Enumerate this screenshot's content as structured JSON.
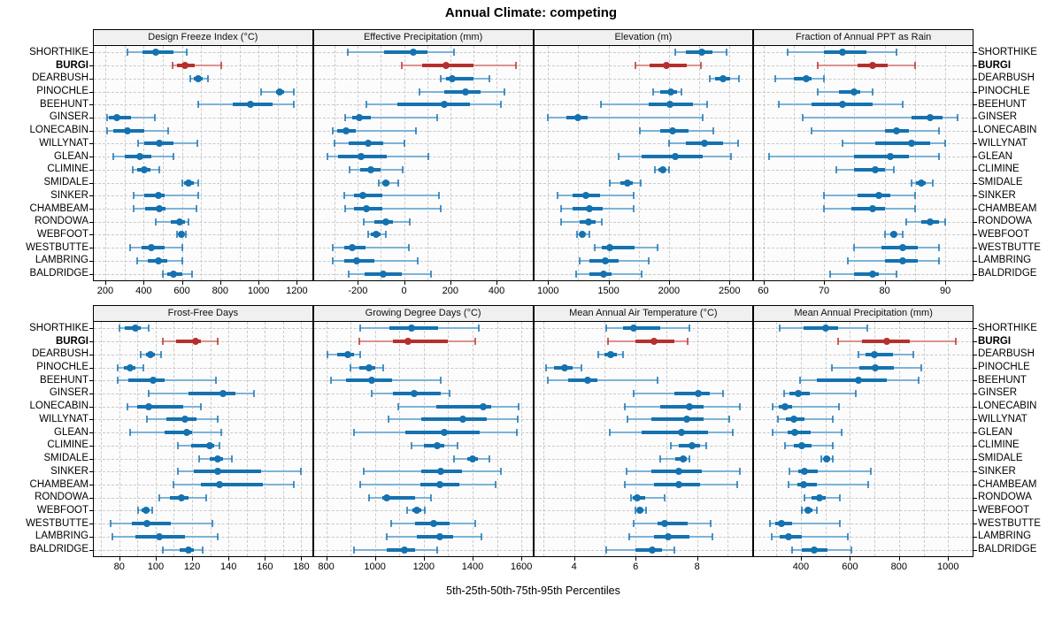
{
  "title": "Annual Climate: competing",
  "xlabel": "5th-25th-50th-75th-95th Percentiles",
  "percentiles": [
    5,
    25,
    50,
    75,
    95
  ],
  "highlight_site": "BURGI",
  "sites": [
    "SHORTHIKE",
    "BURGI",
    "DEARBUSH",
    "PINOCHLE",
    "BEEHUNT",
    "GINSER",
    "LONECABIN",
    "WILLYNAT",
    "GLEAN",
    "CLIMINE",
    "SMIDALE",
    "SINKER",
    "CHAMBEAM",
    "RONDOWA",
    "WEBFOOT",
    "WESTBUTTE",
    "LAMBRING",
    "BALDRIDGE"
  ],
  "colors": {
    "series": "#1572b0",
    "series_light": "#7db3d8",
    "highlight": "#b5302d",
    "highlight_light": "#dd9391",
    "grid": "#c9c9c9",
    "strip_bg": "#f0f0f0",
    "panel_bg": "#fcfcfc",
    "border": "#000000"
  },
  "chart_data": [
    {
      "type": "dotplot",
      "title": "Design Freeze Index (°C)",
      "xlim": [
        140,
        1280
      ],
      "ticks": [
        200,
        400,
        600,
        800,
        1000,
        1200
      ],
      "grid_step": 100,
      "values": [
        [
          315,
          395,
          465,
          555,
          625
        ],
        [
          550,
          572,
          615,
          668,
          807
        ],
        [
          645,
          662,
          685,
          706,
          736
        ],
        [
          1015,
          1090,
          1110,
          1135,
          1185
        ],
        [
          685,
          865,
          960,
          1075,
          1185
        ],
        [
          208,
          220,
          260,
          335,
          460
        ],
        [
          210,
          240,
          315,
          405,
          530
        ],
        [
          370,
          405,
          480,
          555,
          680
        ],
        [
          240,
          300,
          380,
          440,
          555
        ],
        [
          345,
          365,
          405,
          435,
          480
        ],
        [
          600,
          612,
          633,
          660,
          683
        ],
        [
          350,
          405,
          475,
          510,
          685
        ],
        [
          350,
          410,
          480,
          515,
          675
        ],
        [
          465,
          540,
          590,
          615,
          635
        ],
        [
          575,
          587,
          598,
          610,
          622
        ],
        [
          330,
          390,
          440,
          510,
          600
        ],
        [
          365,
          420,
          475,
          525,
          600
        ],
        [
          500,
          525,
          555,
          600,
          655
        ]
      ]
    },
    {
      "type": "dotplot",
      "title": "Effective Precipitation (mm)",
      "xlim": [
        -390,
        555
      ],
      "ticks": [
        -200,
        0,
        200,
        400
      ],
      "grid_step": 100,
      "values": [
        [
          -245,
          -85,
          40,
          100,
          215
        ],
        [
          -10,
          80,
          180,
          300,
          485
        ],
        [
          160,
          180,
          210,
          300,
          370
        ],
        [
          65,
          175,
          265,
          330,
          435
        ],
        [
          -165,
          -30,
          175,
          285,
          420
        ],
        [
          -255,
          -225,
          -195,
          -145,
          145
        ],
        [
          -310,
          -290,
          -250,
          -210,
          50
        ],
        [
          -300,
          -240,
          -155,
          -90,
          0
        ],
        [
          -330,
          -285,
          -185,
          -75,
          105
        ],
        [
          -235,
          -190,
          -145,
          -100,
          -5
        ],
        [
          -110,
          -95,
          -78,
          -65,
          -27
        ],
        [
          -260,
          -215,
          -180,
          -95,
          150
        ],
        [
          -255,
          -215,
          -165,
          -95,
          160
        ],
        [
          -175,
          -130,
          -77,
          -50,
          25
        ],
        [
          -155,
          -143,
          -122,
          -102,
          -77
        ],
        [
          -310,
          -260,
          -223,
          -167,
          22
        ],
        [
          -310,
          -260,
          -205,
          -130,
          60
        ],
        [
          -240,
          -170,
          -90,
          -10,
          118
        ]
      ]
    },
    {
      "type": "dotplot",
      "title": "Elevation (m)",
      "xlim": [
        885,
        2690
      ],
      "ticks": [
        1000,
        1500,
        2000,
        2500
      ],
      "grid_step": 250,
      "values": [
        [
          2050,
          2140,
          2270,
          2360,
          2475
        ],
        [
          1720,
          1840,
          1980,
          2145,
          2265
        ],
        [
          2335,
          2380,
          2450,
          2505,
          2575
        ],
        [
          1870,
          1930,
          2015,
          2070,
          2105
        ],
        [
          1435,
          1830,
          2010,
          2200,
          2315
        ],
        [
          995,
          1150,
          1250,
          1330,
          2280
        ],
        [
          1760,
          1925,
          2030,
          2165,
          2365
        ],
        [
          2000,
          2140,
          2290,
          2450,
          2570
        ],
        [
          1585,
          1775,
          2050,
          2275,
          2510
        ],
        [
          1880,
          1910,
          1950,
          1975,
          2000
        ],
        [
          1510,
          1600,
          1655,
          1700,
          1765
        ],
        [
          1080,
          1200,
          1315,
          1430,
          1705
        ],
        [
          1105,
          1200,
          1340,
          1450,
          1710
        ],
        [
          1110,
          1265,
          1335,
          1395,
          1445
        ],
        [
          1240,
          1260,
          1283,
          1307,
          1340
        ],
        [
          1385,
          1445,
          1510,
          1715,
          1905
        ],
        [
          1265,
          1345,
          1475,
          1580,
          1835
        ],
        [
          1230,
          1340,
          1460,
          1525,
          1775
        ]
      ]
    },
    {
      "type": "dotplot",
      "title": "Fraction of Annual PPT as Rain",
      "xlim": [
        58.5,
        94.5
      ],
      "ticks": [
        60,
        70,
        80,
        90
      ],
      "grid_step": 5,
      "values": [
        [
          64,
          70,
          73,
          77,
          82
        ],
        [
          69,
          75.5,
          78,
          80.5,
          85
        ],
        [
          62,
          65,
          67,
          68,
          70
        ],
        [
          69,
          72.5,
          75,
          76,
          78
        ],
        [
          62.5,
          68,
          73,
          78,
          83
        ],
        [
          66.5,
          84.5,
          87.5,
          89.5,
          92
        ],
        [
          68,
          80,
          82,
          84,
          89
        ],
        [
          73,
          78.5,
          84.5,
          87.5,
          90
        ],
        [
          61,
          75,
          81,
          84,
          89
        ],
        [
          72,
          75,
          78.5,
          80,
          81.5
        ],
        [
          84.5,
          85.2,
          86,
          86.8,
          88
        ],
        [
          70,
          75.5,
          79,
          81,
          85
        ],
        [
          70,
          74.5,
          78,
          80,
          85
        ],
        [
          83.5,
          86,
          87.5,
          89,
          90
        ],
        [
          80,
          81,
          81.5,
          82,
          83
        ],
        [
          75,
          79.5,
          83,
          85.5,
          89
        ],
        [
          74,
          80,
          83,
          85.5,
          89
        ],
        [
          71,
          75,
          78,
          79,
          82
        ]
      ]
    },
    {
      "type": "dotplot",
      "title": "Frost-Free Days",
      "xlim": [
        66,
        186
      ],
      "ticks": [
        80,
        100,
        120,
        140,
        160,
        180
      ],
      "grid_step": 10,
      "values": [
        [
          80,
          83,
          89,
          92,
          96
        ],
        [
          104,
          111,
          122,
          125,
          134
        ],
        [
          92,
          94.5,
          97,
          99.5,
          103
        ],
        [
          79,
          82.5,
          86,
          89,
          93
        ],
        [
          79,
          85,
          98.5,
          105,
          133
        ],
        [
          96,
          118,
          137,
          144,
          154
        ],
        [
          84.5,
          90,
          96,
          115,
          125
        ],
        [
          95,
          106,
          116,
          122.5,
          134
        ],
        [
          86,
          105,
          117,
          120,
          136
        ],
        [
          112,
          119.5,
          129.5,
          132,
          135
        ],
        [
          124,
          129.5,
          134,
          137,
          142
        ],
        [
          112,
          121,
          134,
          158,
          180
        ],
        [
          110,
          125,
          135,
          159,
          176
        ],
        [
          102,
          108,
          114,
          118,
          128
        ],
        [
          90.5,
          92.5,
          94.5,
          96.5,
          98
        ],
        [
          75,
          87,
          95,
          108.5,
          131
        ],
        [
          76,
          89,
          102,
          116,
          134
        ],
        [
          104,
          113,
          118,
          121,
          126
        ]
      ]
    },
    {
      "type": "dotplot",
      "title": "Growing Degree Days (°C)",
      "xlim": [
        750,
        1645
      ],
      "ticks": [
        800,
        1000,
        1200,
        1400,
        1600
      ],
      "grid_step": 100,
      "values": [
        [
          940,
          1060,
          1150,
          1260,
          1425
        ],
        [
          935,
          1075,
          1135,
          1300,
          1410
        ],
        [
          805,
          845,
          890,
          915,
          940
        ],
        [
          900,
          935,
          975,
          1000,
          1035
        ],
        [
          820,
          880,
          985,
          1070,
          1270
        ],
        [
          985,
          1075,
          1160,
          1270,
          1305
        ],
        [
          1095,
          1250,
          1445,
          1475,
          1590
        ],
        [
          1055,
          1190,
          1360,
          1460,
          1585
        ],
        [
          915,
          1125,
          1285,
          1430,
          1580
        ],
        [
          1150,
          1200,
          1255,
          1285,
          1340
        ],
        [
          1325,
          1378,
          1400,
          1423,
          1468
        ],
        [
          955,
          1190,
          1270,
          1355,
          1515
        ],
        [
          940,
          1185,
          1265,
          1345,
          1495
        ],
        [
          975,
          1030,
          1050,
          1165,
          1230
        ],
        [
          1130,
          1155,
          1172,
          1190,
          1205
        ],
        [
          1065,
          1165,
          1240,
          1305,
          1410
        ],
        [
          1050,
          1170,
          1265,
          1320,
          1435
        ],
        [
          915,
          1050,
          1120,
          1165,
          1255
        ]
      ]
    },
    {
      "type": "dotplot",
      "title": "Mean Annual Air Temperature (°C)",
      "xlim": [
        2.7,
        9.8
      ],
      "ticks": [
        4,
        6,
        8
      ],
      "grid_step": 1,
      "values": [
        [
          5.05,
          5.6,
          5.95,
          6.8,
          7.75
        ],
        [
          5.1,
          6.0,
          6.6,
          7.25,
          7.7
        ],
        [
          4.8,
          5.0,
          5.2,
          5.4,
          5.6
        ],
        [
          3.1,
          3.35,
          3.7,
          3.95,
          4.25
        ],
        [
          3.15,
          3.8,
          4.45,
          4.75,
          6.7
        ],
        [
          5.95,
          7.25,
          8.05,
          8.4,
          8.85
        ],
        [
          5.65,
          6.8,
          7.75,
          8.2,
          9.4
        ],
        [
          5.75,
          6.5,
          7.65,
          8.2,
          9.05
        ],
        [
          5.15,
          6.2,
          7.5,
          8.35,
          9.15
        ],
        [
          7.15,
          7.4,
          7.85,
          8.1,
          8.3
        ],
        [
          6.8,
          7.3,
          7.55,
          7.65,
          7.75
        ],
        [
          5.7,
          6.5,
          7.4,
          8.15,
          9.4
        ],
        [
          5.65,
          6.6,
          7.4,
          8.1,
          9.3
        ],
        [
          5.85,
          5.9,
          6.05,
          6.3,
          6.95
        ],
        [
          6.0,
          6.05,
          6.15,
          6.25,
          6.35
        ],
        [
          5.95,
          6.7,
          6.95,
          7.7,
          8.45
        ],
        [
          5.8,
          6.6,
          7.05,
          7.75,
          8.5
        ],
        [
          5.05,
          6.0,
          6.55,
          6.85,
          7.25
        ]
      ]
    },
    {
      "type": "dotplot",
      "title": "Mean Annual Precipitation (mm)",
      "xlim": [
        210,
        1100
      ],
      "ticks": [
        400,
        600,
        800,
        1000
      ],
      "grid_step": 100,
      "values": [
        [
          315,
          410,
          500,
          550,
          670
        ],
        [
          550,
          650,
          750,
          845,
          1030
        ],
        [
          635,
          665,
          700,
          775,
          860
        ],
        [
          525,
          640,
          705,
          780,
          890
        ],
        [
          395,
          465,
          635,
          750,
          880
        ],
        [
          330,
          355,
          390,
          435,
          625
        ],
        [
          285,
          310,
          335,
          365,
          555
        ],
        [
          305,
          340,
          370,
          415,
          530
        ],
        [
          285,
          345,
          375,
          440,
          565
        ],
        [
          335,
          370,
          405,
          445,
          530
        ],
        [
          483,
          495,
          505,
          518,
          530
        ],
        [
          355,
          390,
          415,
          470,
          685
        ],
        [
          350,
          385,
          410,
          465,
          675
        ],
        [
          415,
          445,
          475,
          500,
          560
        ],
        [
          405,
          417,
          430,
          447,
          465
        ],
        [
          275,
          295,
          320,
          365,
          560
        ],
        [
          280,
          315,
          350,
          405,
          590
        ],
        [
          365,
          405,
          455,
          510,
          605
        ]
      ]
    }
  ]
}
